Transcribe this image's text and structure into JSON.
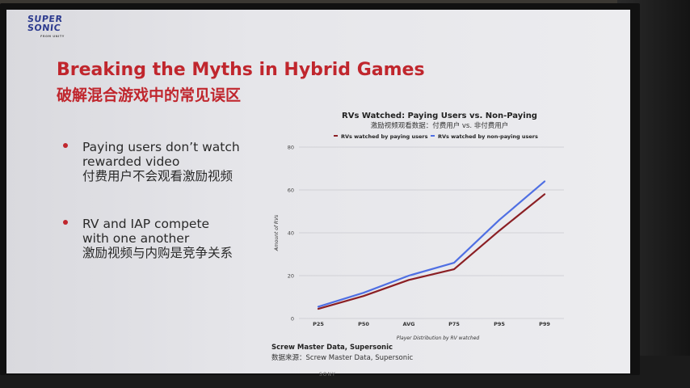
{
  "logo": {
    "line1": "SUPER",
    "line2": "SONIC",
    "sub": "FROM UNITY"
  },
  "bezel_brand": "SONY",
  "slide": {
    "title_en": "Breaking the Myths in Hybrid Games",
    "title_zh": "破解混合游戏中的常见误区",
    "bullets": [
      {
        "en_line1": "Paying users don’t watch",
        "en_line2": "rewarded video",
        "zh": "付费用户不会观看激励视频"
      },
      {
        "en_line1": "RV and IAP compete",
        "en_line2": "with one another",
        "zh": "激励视频与内购是竞争关系"
      }
    ],
    "source_en": "Screw Master Data, Supersonic",
    "source_zh": "数据来源：Screw Master Data, Supersonic"
  },
  "colors": {
    "accent": "#c0262d",
    "paying": "#8b1f24",
    "non_paying": "#4f6fe3",
    "brand": "#2d3b8f"
  },
  "chart_data": {
    "type": "line",
    "title": "RVs Watched: Paying Users vs. Non-Paying",
    "subtitle": "激励视频观看数据：付费用户 vs. 非付费用户",
    "xlabel": "Player Distribution by RV watched",
    "ylabel": "Amount of RVs",
    "categories": [
      "P25",
      "P50",
      "AVG",
      "P75",
      "P95",
      "P99"
    ],
    "yticks": [
      0,
      20,
      40,
      60,
      80
    ],
    "ylim": [
      0,
      80
    ],
    "grid": true,
    "legend_position": "top",
    "series": [
      {
        "name": "RVs watched by paying users",
        "color": "#8b1f24",
        "values": [
          4.5,
          10.5,
          18,
          23,
          41,
          58
        ]
      },
      {
        "name": "RVs watched by non-paying users",
        "color": "#4f6fe3",
        "values": [
          5.5,
          12,
          20,
          26,
          46,
          64
        ]
      }
    ]
  }
}
